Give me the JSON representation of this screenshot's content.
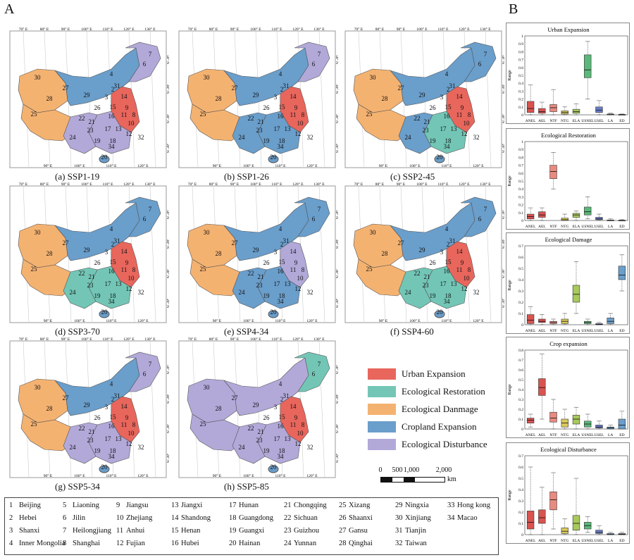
{
  "panel_labels": {
    "a": "A",
    "b": "B"
  },
  "category_colors": {
    "urban": "#e8665c",
    "restoration": "#73c6b6",
    "damage": "#f4b271",
    "cropland": "#6a9ecb",
    "disturbance": "#b2a9d9"
  },
  "maps": [
    {
      "caption": "(a) SSP1-19"
    },
    {
      "caption": "(b) SSP1-26"
    },
    {
      "caption": "(c) SSP2-45"
    },
    {
      "caption": "(d) SSP3-70"
    },
    {
      "caption": "(e) SSP4-34"
    },
    {
      "caption": "(f) SSP4-60"
    },
    {
      "caption": "(g) SSP5-34"
    },
    {
      "caption": "(h) SSP5-85"
    }
  ],
  "map_axis_labels": {
    "top": [
      "70° E",
      "80° E",
      "90° E",
      "100° E",
      "110° E",
      "120° E",
      "130° E"
    ],
    "right": [
      "50° N",
      "40° N",
      "30° N",
      "20° N"
    ],
    "bottom": [
      "90° E",
      "100° E",
      "110° E",
      "120° E"
    ]
  },
  "legend": [
    {
      "label": "Urban Expansion",
      "color": "#e8665c"
    },
    {
      "label": "Ecological Restoration",
      "color": "#73c6b6"
    },
    {
      "label": "Ecological Danmage",
      "color": "#f4b271"
    },
    {
      "label": "Cropland Expansion",
      "color": "#6a9ecb"
    },
    {
      "label": "Ecological Disturbance",
      "color": "#b2a9d9"
    }
  ],
  "scalebar": {
    "ticks": [
      "0",
      "500",
      "1,000",
      "2,000"
    ],
    "unit": "km"
  },
  "provinces": [
    [
      "1",
      "Beijing"
    ],
    [
      "2",
      "Hebei"
    ],
    [
      "3",
      "Shanxi"
    ],
    [
      "4",
      "Inner Mongolia"
    ],
    [
      "5",
      "Liaoning"
    ],
    [
      "6",
      "Jilin"
    ],
    [
      "7",
      "Heilongjiang"
    ],
    [
      "8",
      "Shanghai"
    ],
    [
      "9",
      "Jiangsu"
    ],
    [
      "10",
      "Zhejiang"
    ],
    [
      "11",
      "Anhui"
    ],
    [
      "12",
      "Fujian"
    ],
    [
      "13",
      "Jiangxi"
    ],
    [
      "14",
      "Shandong"
    ],
    [
      "15",
      "Henan"
    ],
    [
      "16",
      "Hubei"
    ],
    [
      "17",
      "Hunan"
    ],
    [
      "18",
      "Guangdong"
    ],
    [
      "19",
      "Guangxi"
    ],
    [
      "20",
      "Hainan"
    ],
    [
      "21",
      "Chongqing"
    ],
    [
      "22",
      "Sichuan"
    ],
    [
      "23",
      "Guizhou"
    ],
    [
      "24",
      "Yunnan"
    ],
    [
      "25",
      "Xizang"
    ],
    [
      "26",
      "Shaanxi"
    ],
    [
      "27",
      "Gansu"
    ],
    [
      "28",
      "Qinghai"
    ],
    [
      "29",
      "Ningxia"
    ],
    [
      "30",
      "Xinjiang"
    ],
    [
      "31",
      "Tianjin"
    ],
    [
      "32",
      "Taiwan"
    ],
    [
      "33",
      "Hong kong"
    ],
    [
      "34",
      "Macao"
    ]
  ],
  "chart_data": [
    {
      "type": "box",
      "title": "Urban Expansion",
      "ylabel": "Range",
      "ylim": [
        0,
        1.0
      ],
      "yticks": [
        "0",
        "0.1",
        "0.2",
        "0.3",
        "0.4",
        "0.5",
        "0.6",
        "0.7",
        "0.8",
        "0.9",
        "1"
      ],
      "categories": [
        "ANEL",
        "AEL",
        "NTF",
        "NTG",
        "ELA",
        "USNEL",
        "USEL",
        "LA",
        "ED"
      ],
      "boxes": [
        {
          "q1": 0.03,
          "median": 0.08,
          "q3": 0.17,
          "min": 0.0,
          "max": 0.38,
          "color": "#d9534f"
        },
        {
          "q1": 0.02,
          "median": 0.04,
          "q3": 0.08,
          "min": 0.0,
          "max": 0.16,
          "color": "#d9534f"
        },
        {
          "q1": 0.04,
          "median": 0.09,
          "q3": 0.13,
          "min": 0.0,
          "max": 0.32,
          "color": "#e88a80"
        },
        {
          "q1": 0.01,
          "median": 0.03,
          "q3": 0.05,
          "min": 0.0,
          "max": 0.1,
          "color": "#d9c95c"
        },
        {
          "q1": 0.02,
          "median": 0.04,
          "q3": 0.07,
          "min": 0.0,
          "max": 0.14,
          "color": "#a8c95c"
        },
        {
          "q1": 0.47,
          "median": 0.57,
          "q3": 0.76,
          "min": 0.2,
          "max": 0.93,
          "color": "#5cb87a"
        },
        {
          "q1": 0.03,
          "median": 0.06,
          "q3": 0.1,
          "min": 0.0,
          "max": 0.18,
          "color": "#6a7ecb"
        },
        {
          "q1": 0.0,
          "median": 0.003,
          "q3": 0.01,
          "min": 0.0,
          "max": 0.02,
          "color": "#6a9ecb"
        },
        {
          "q1": 0.0,
          "median": 0.002,
          "q3": 0.005,
          "min": 0.0,
          "max": 0.01,
          "color": "#8a8aa0"
        }
      ]
    },
    {
      "type": "box",
      "title": "Ecological Restoration",
      "ylabel": "Range",
      "ylim": [
        0,
        1.0
      ],
      "yticks": [
        "0",
        "0.1",
        "0.2",
        "0.3",
        "0.4",
        "0.5",
        "0.6",
        "0.7",
        "0.8",
        "0.9",
        "1"
      ],
      "categories": [
        "ANEL",
        "AEL",
        "NTF",
        "NTG",
        "ELA",
        "USNEL",
        "USEL",
        "LA",
        "ED"
      ],
      "boxes": [
        {
          "q1": 0.02,
          "median": 0.05,
          "q3": 0.08,
          "min": 0.0,
          "max": 0.16,
          "color": "#d9534f"
        },
        {
          "q1": 0.04,
          "median": 0.07,
          "q3": 0.11,
          "min": 0.0,
          "max": 0.16,
          "color": "#d9534f"
        },
        {
          "q1": 0.53,
          "median": 0.62,
          "q3": 0.7,
          "min": 0.4,
          "max": 0.86,
          "color": "#e88a80"
        },
        {
          "q1": 0.0,
          "median": 0.01,
          "q3": 0.03,
          "min": 0.0,
          "max": 0.08,
          "color": "#d9c95c"
        },
        {
          "q1": 0.04,
          "median": 0.07,
          "q3": 0.09,
          "min": 0.0,
          "max": 0.12,
          "color": "#a8c95c"
        },
        {
          "q1": 0.07,
          "median": 0.11,
          "q3": 0.17,
          "min": 0.02,
          "max": 0.3,
          "color": "#5cb87a"
        },
        {
          "q1": 0.01,
          "median": 0.02,
          "q3": 0.04,
          "min": 0.0,
          "max": 0.08,
          "color": "#6a7ecb"
        },
        {
          "q1": 0.0,
          "median": 0.002,
          "q3": 0.005,
          "min": 0.0,
          "max": 0.02,
          "color": "#6a9ecb"
        },
        {
          "q1": 0.0,
          "median": 0.001,
          "q3": 0.003,
          "min": 0.0,
          "max": 0.01,
          "color": "#8a8aa0"
        }
      ]
    },
    {
      "type": "box",
      "title": "Ecological Damage",
      "ylabel": "Range",
      "ylim": [
        0,
        0.7
      ],
      "yticks": [
        "0",
        "0.1",
        "0.2",
        "0.3",
        "0.4",
        "0.5",
        "0.6",
        "0.7"
      ],
      "categories": [
        "ANEL",
        "AEL",
        "NTF",
        "NTG",
        "ELA",
        "USNEL",
        "USEL",
        "LA",
        "ED"
      ],
      "boxes": [
        {
          "q1": 0.01,
          "median": 0.04,
          "q3": 0.09,
          "min": 0.0,
          "max": 0.16,
          "color": "#d9534f"
        },
        {
          "q1": 0.02,
          "median": 0.03,
          "q3": 0.05,
          "min": 0.0,
          "max": 0.09,
          "color": "#d9534f"
        },
        {
          "q1": 0.01,
          "median": 0.02,
          "q3": 0.03,
          "min": 0.0,
          "max": 0.05,
          "color": "#e88a80"
        },
        {
          "q1": 0.01,
          "median": 0.03,
          "q3": 0.05,
          "min": 0.0,
          "max": 0.1,
          "color": "#d9c95c"
        },
        {
          "q1": 0.2,
          "median": 0.27,
          "q3": 0.35,
          "min": 0.1,
          "max": 0.56,
          "color": "#a8c95c"
        },
        {
          "q1": 0.01,
          "median": 0.02,
          "q3": 0.03,
          "min": 0.0,
          "max": 0.05,
          "color": "#5cb87a"
        },
        {
          "q1": 0.0,
          "median": 0.003,
          "q3": 0.01,
          "min": 0.0,
          "max": 0.02,
          "color": "#6a7ecb"
        },
        {
          "q1": 0.01,
          "median": 0.03,
          "q3": 0.06,
          "min": 0.0,
          "max": 0.1,
          "color": "#6a9ecb"
        },
        {
          "q1": 0.4,
          "median": 0.44,
          "q3": 0.52,
          "min": 0.3,
          "max": 0.62,
          "color": "#6a9ecb"
        }
      ]
    },
    {
      "type": "box",
      "title": "Crop expansion",
      "ylabel": "Range",
      "ylim": [
        0,
        0.8
      ],
      "yticks": [
        "0",
        "0.1",
        "0.2",
        "0.3",
        "0.4",
        "0.5",
        "0.6",
        "0.7",
        "0.8"
      ],
      "categories": [
        "ANEL",
        "AEL",
        "NTF",
        "NTG",
        "ELA",
        "USNEL",
        "USEL",
        "LA",
        "ED"
      ],
      "boxes": [
        {
          "q1": 0.06,
          "median": 0.09,
          "q3": 0.11,
          "min": 0.02,
          "max": 0.15,
          "color": "#d9534f"
        },
        {
          "q1": 0.34,
          "median": 0.42,
          "q3": 0.51,
          "min": 0.1,
          "max": 0.76,
          "color": "#d9534f"
        },
        {
          "q1": 0.07,
          "median": 0.11,
          "q3": 0.17,
          "min": 0.0,
          "max": 0.3,
          "color": "#e88a80"
        },
        {
          "q1": 0.02,
          "median": 0.06,
          "q3": 0.1,
          "min": 0.0,
          "max": 0.2,
          "color": "#d9c95c"
        },
        {
          "q1": 0.05,
          "median": 0.1,
          "q3": 0.14,
          "min": 0.0,
          "max": 0.22,
          "color": "#a8c95c"
        },
        {
          "q1": 0.02,
          "median": 0.05,
          "q3": 0.08,
          "min": 0.0,
          "max": 0.15,
          "color": "#5cb87a"
        },
        {
          "q1": 0.01,
          "median": 0.02,
          "q3": 0.04,
          "min": 0.0,
          "max": 0.08,
          "color": "#6a7ecb"
        },
        {
          "q1": 0.0,
          "median": 0.01,
          "q3": 0.02,
          "min": 0.0,
          "max": 0.04,
          "color": "#6a9ecb"
        },
        {
          "q1": 0.0,
          "median": 0.04,
          "q3": 0.1,
          "min": 0.0,
          "max": 0.18,
          "color": "#6a9ecb"
        }
      ]
    },
    {
      "type": "box",
      "title": "Ecological Disturbance",
      "ylabel": "Range",
      "ylim": [
        0,
        0.7
      ],
      "yticks": [
        "0",
        "0.1",
        "0.2",
        "0.3",
        "0.4",
        "0.5",
        "0.6",
        "0.7"
      ],
      "categories": [
        "ANEL",
        "AEL",
        "NTF",
        "NTG",
        "ELA",
        "USNEL",
        "USEL",
        "LA",
        "ED"
      ],
      "boxes": [
        {
          "q1": 0.05,
          "median": 0.11,
          "q3": 0.21,
          "min": 0.0,
          "max": 0.6,
          "color": "#d9534f"
        },
        {
          "q1": 0.1,
          "median": 0.15,
          "q3": 0.22,
          "min": 0.0,
          "max": 0.42,
          "color": "#d9534f"
        },
        {
          "q1": 0.22,
          "median": 0.31,
          "q3": 0.38,
          "min": 0.05,
          "max": 0.55,
          "color": "#e88a80"
        },
        {
          "q1": 0.01,
          "median": 0.03,
          "q3": 0.06,
          "min": 0.0,
          "max": 0.14,
          "color": "#d9c95c"
        },
        {
          "q1": 0.04,
          "median": 0.1,
          "q3": 0.17,
          "min": 0.0,
          "max": 0.5,
          "color": "#a8c95c"
        },
        {
          "q1": 0.05,
          "median": 0.08,
          "q3": 0.11,
          "min": 0.02,
          "max": 0.16,
          "color": "#5cb87a"
        },
        {
          "q1": 0.01,
          "median": 0.02,
          "q3": 0.04,
          "min": 0.0,
          "max": 0.08,
          "color": "#6a7ecb"
        },
        {
          "q1": 0.0,
          "median": 0.002,
          "q3": 0.01,
          "min": 0.0,
          "max": 0.02,
          "color": "#6a9ecb"
        },
        {
          "q1": 0.0,
          "median": 0.003,
          "q3": 0.01,
          "min": 0.0,
          "max": 0.02,
          "color": "#8a8aa0"
        }
      ]
    }
  ]
}
